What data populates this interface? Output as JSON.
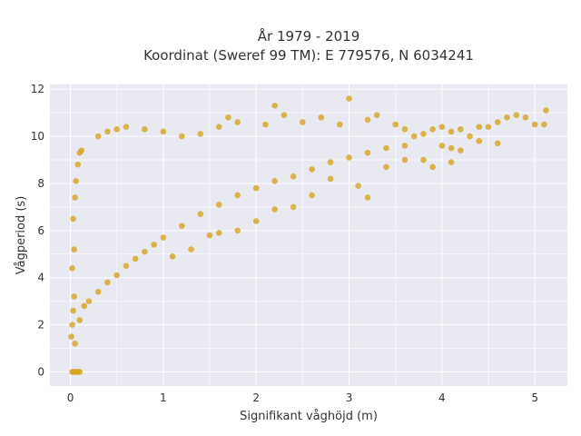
{
  "chart_data": {
    "type": "scatter",
    "title": "År 1979 - 2019",
    "subtitle": "Koordinat (Sweref 99 TM): E 779576, N 6034241",
    "xlabel": "Signifikant våghöjd (m)",
    "ylabel": "Vågperiod (s)",
    "xlim": [
      -0.22,
      5.35
    ],
    "ylim": [
      -0.6,
      12.2
    ],
    "xticks": [
      0,
      1,
      2,
      3,
      4,
      5
    ],
    "yticks": [
      0,
      2,
      4,
      6,
      8,
      10,
      12
    ],
    "grid": true,
    "marker_color": "#D4A520",
    "plot_bg": "#E9E9F1",
    "points": [
      [
        0.02,
        0
      ],
      [
        0.03,
        0
      ],
      [
        0.05,
        0
      ],
      [
        0.06,
        0
      ],
      [
        0.08,
        0
      ],
      [
        0.1,
        0
      ],
      [
        0.01,
        1.5
      ],
      [
        0.02,
        2.0
      ],
      [
        0.03,
        2.6
      ],
      [
        0.04,
        3.2
      ],
      [
        0.05,
        1.2
      ],
      [
        0.02,
        4.4
      ],
      [
        0.04,
        5.2
      ],
      [
        0.03,
        6.5
      ],
      [
        0.05,
        7.4
      ],
      [
        0.06,
        8.1
      ],
      [
        0.08,
        8.8
      ],
      [
        0.1,
        9.3
      ],
      [
        0.12,
        9.4
      ],
      [
        0.1,
        2.2
      ],
      [
        0.15,
        2.8
      ],
      [
        0.2,
        3.0
      ],
      [
        0.3,
        3.4
      ],
      [
        0.4,
        3.8
      ],
      [
        0.5,
        4.1
      ],
      [
        0.6,
        4.5
      ],
      [
        0.7,
        4.8
      ],
      [
        0.8,
        5.1
      ],
      [
        0.9,
        5.4
      ],
      [
        1.0,
        5.7
      ],
      [
        1.2,
        6.2
      ],
      [
        1.4,
        6.7
      ],
      [
        1.6,
        7.1
      ],
      [
        1.8,
        7.5
      ],
      [
        2.0,
        7.8
      ],
      [
        2.2,
        8.1
      ],
      [
        2.4,
        8.3
      ],
      [
        2.6,
        8.6
      ],
      [
        2.8,
        8.9
      ],
      [
        3.0,
        9.1
      ],
      [
        3.2,
        9.3
      ],
      [
        3.4,
        9.5
      ],
      [
        3.6,
        9.6
      ],
      [
        0.3,
        10.0
      ],
      [
        0.4,
        10.2
      ],
      [
        0.5,
        10.3
      ],
      [
        0.6,
        10.4
      ],
      [
        0.8,
        10.3
      ],
      [
        1.0,
        10.2
      ],
      [
        1.2,
        10.0
      ],
      [
        1.4,
        10.1
      ],
      [
        1.6,
        10.4
      ],
      [
        1.7,
        10.8
      ],
      [
        1.8,
        10.6
      ],
      [
        2.1,
        10.5
      ],
      [
        2.2,
        11.3
      ],
      [
        2.3,
        10.9
      ],
      [
        2.5,
        10.6
      ],
      [
        2.7,
        10.8
      ],
      [
        2.9,
        10.5
      ],
      [
        3.0,
        11.6
      ],
      [
        3.2,
        10.7
      ],
      [
        3.3,
        10.9
      ],
      [
        3.5,
        10.5
      ],
      [
        3.6,
        10.3
      ],
      [
        3.7,
        10.0
      ],
      [
        3.8,
        10.1
      ],
      [
        3.9,
        10.3
      ],
      [
        4.0,
        10.4
      ],
      [
        4.1,
        10.2
      ],
      [
        4.2,
        10.3
      ],
      [
        4.3,
        10.0
      ],
      [
        4.4,
        10.4
      ],
      [
        4.5,
        10.4
      ],
      [
        4.6,
        10.6
      ],
      [
        4.7,
        10.8
      ],
      [
        4.8,
        10.9
      ],
      [
        4.9,
        10.8
      ],
      [
        5.0,
        10.5
      ],
      [
        5.1,
        10.5
      ],
      [
        5.12,
        11.1
      ],
      [
        3.4,
        8.7
      ],
      [
        3.6,
        9.0
      ],
      [
        3.8,
        9.0
      ],
      [
        4.0,
        9.6
      ],
      [
        4.1,
        9.5
      ],
      [
        4.2,
        9.4
      ],
      [
        4.4,
        9.8
      ],
      [
        4.6,
        9.7
      ],
      [
        4.1,
        8.9
      ],
      [
        3.9,
        8.7
      ],
      [
        3.2,
        7.4
      ],
      [
        3.1,
        7.9
      ],
      [
        2.8,
        8.2
      ],
      [
        2.6,
        7.5
      ],
      [
        2.4,
        7.0
      ],
      [
        2.2,
        6.9
      ],
      [
        2.0,
        6.4
      ],
      [
        1.8,
        6.0
      ],
      [
        1.6,
        5.9
      ],
      [
        1.5,
        5.8
      ],
      [
        1.3,
        5.2
      ],
      [
        1.1,
        4.9
      ]
    ]
  }
}
